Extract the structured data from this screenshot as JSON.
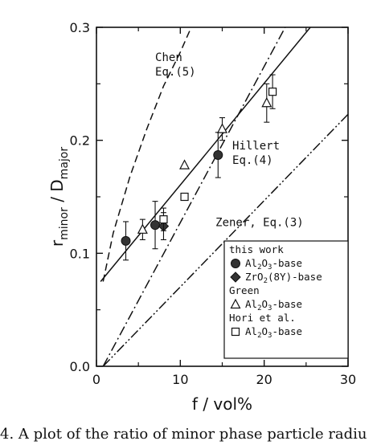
{
  "caption": "4.  A plot of the ratio of minor phase particle radiu",
  "chart_data": {
    "type": "scatter",
    "xlabel": "f / vol%",
    "ylabel_main": "r",
    "ylabel_sub1": "minor",
    "ylabel_mid": " / D",
    "ylabel_sub2": "major",
    "xlim": [
      0,
      30
    ],
    "ylim": [
      0,
      0.3
    ],
    "xticks": [
      "0",
      "10",
      "20",
      "30"
    ],
    "yticks": [
      "0.0",
      "0.1",
      "0.2",
      "0.3"
    ],
    "curves": [
      {
        "label_lines": [
          "Chen",
          "Eq.(5)"
        ],
        "style": "dashed",
        "points": [
          [
            0.8,
            0.075
          ],
          [
            2,
            0.118
          ],
          [
            4,
            0.168
          ],
          [
            6,
            0.21
          ],
          [
            8,
            0.248
          ],
          [
            10,
            0.278
          ],
          [
            11.3,
            0.3
          ]
        ]
      },
      {
        "label_lines": [
          "Hillert",
          "Eq.(4)"
        ],
        "style": "dashdot",
        "points": [
          [
            0.8,
            0.0
          ],
          [
            22.5,
            0.3
          ]
        ]
      },
      {
        "label_lines": [
          "Zener, Eq.(3)"
        ],
        "style": "dashdotdot",
        "points": [
          [
            0.8,
            0.0
          ],
          [
            30,
            0.223
          ]
        ]
      },
      {
        "label_lines": [],
        "style": "solid",
        "points": [
          [
            0.5,
            0.075
          ],
          [
            25.5,
            0.3
          ]
        ]
      }
    ],
    "legend": {
      "position": "bottom-right",
      "groups": [
        {
          "title": "this work",
          "items": [
            {
              "marker": "circle",
              "name": "Al2O3-base",
              "parts": [
                "Al",
                "2",
                "O",
                "3",
                "-base"
              ]
            },
            {
              "marker": "diamond",
              "name": "ZrO2(8Y)-base",
              "parts": [
                "ZrO",
                "2",
                "(8Y)-base",
                "",
                ""
              ]
            }
          ]
        },
        {
          "title": "Green",
          "items": [
            {
              "marker": "triangle",
              "name": "Al2O3-base",
              "parts": [
                "Al",
                "2",
                "O",
                "3",
                "-base"
              ]
            }
          ]
        },
        {
          "title": "Hori et al.",
          "items": [
            {
              "marker": "square",
              "name": "Al2O3-base",
              "parts": [
                "Al",
                "2",
                "O",
                "3",
                "-base"
              ]
            }
          ]
        }
      ]
    },
    "series": [
      {
        "name": "this work Al2O3-base",
        "marker": "circle",
        "points": [
          {
            "x": 3.5,
            "y": 0.111,
            "err": 0.017
          },
          {
            "x": 7.0,
            "y": 0.125,
            "err": 0.021
          },
          {
            "x": 14.5,
            "y": 0.187,
            "err": 0.02
          }
        ]
      },
      {
        "name": "this work ZrO2(8Y)-base",
        "marker": "diamond",
        "points": [
          {
            "x": 8.0,
            "y": 0.124,
            "err": 0.012
          }
        ]
      },
      {
        "name": "Green Al2O3-base",
        "marker": "triangle",
        "points": [
          {
            "x": 5.5,
            "y": 0.121,
            "err": 0.009
          },
          {
            "x": 10.5,
            "y": 0.178,
            "err": 0
          },
          {
            "x": 15.0,
            "y": 0.21,
            "err": 0.01
          },
          {
            "x": 20.3,
            "y": 0.233,
            "err": 0.017
          }
        ]
      },
      {
        "name": "Hori et al. Al2O3-base",
        "marker": "square",
        "points": [
          {
            "x": 8.0,
            "y": 0.13,
            "err": 0.01
          },
          {
            "x": 10.5,
            "y": 0.15,
            "err": 0
          },
          {
            "x": 21.0,
            "y": 0.243,
            "err": 0.015
          }
        ]
      }
    ]
  }
}
